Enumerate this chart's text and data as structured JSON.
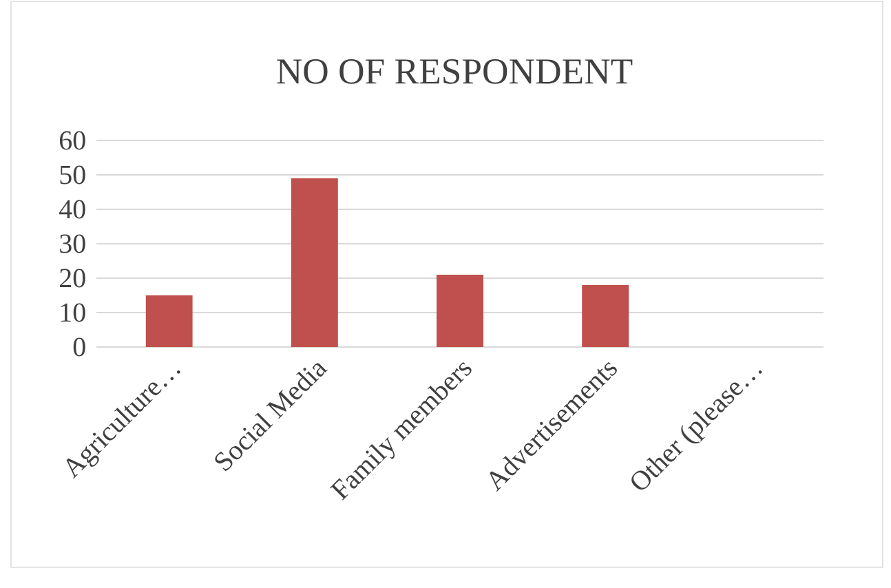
{
  "chart_data": {
    "type": "bar",
    "title": "NO OF RESPONDENT",
    "categories": [
      "Agriculture…",
      "Social Media",
      "Family members",
      "Advertisements",
      "Other (please…"
    ],
    "values": [
      15,
      49,
      21,
      18,
      0
    ],
    "color": "#c0504d",
    "ylim": [
      0,
      60
    ],
    "yticks": [
      0,
      10,
      20,
      30,
      40,
      50,
      60
    ],
    "grid": "y"
  }
}
